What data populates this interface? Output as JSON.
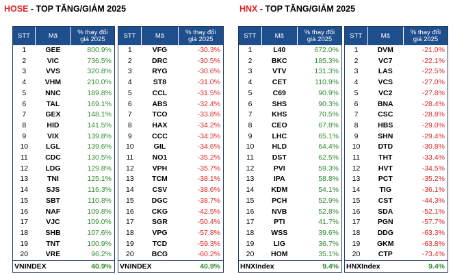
{
  "hose": {
    "exchange": "HOSE",
    "title_rest": " - TOP TĂNG/GIẢM 2025",
    "headers": {
      "stt": "STT",
      "code": "Mã",
      "change_line1": "% thay đổi",
      "change_line2": "giá 2025"
    },
    "index_name": "VNINDEX",
    "index_value": "40.9%",
    "gainers": [
      {
        "stt": "1",
        "code": "GEE",
        "change": "800.9%"
      },
      {
        "stt": "2",
        "code": "VIC",
        "change": "736.5%"
      },
      {
        "stt": "3",
        "code": "VVS",
        "change": "320.8%"
      },
      {
        "stt": "4",
        "code": "VHM",
        "change": "210.0%"
      },
      {
        "stt": "5",
        "code": "NNC",
        "change": "189.8%"
      },
      {
        "stt": "6",
        "code": "TAL",
        "change": "169.1%"
      },
      {
        "stt": "7",
        "code": "GEX",
        "change": "148.1%"
      },
      {
        "stt": "8",
        "code": "HID",
        "change": "141.5%"
      },
      {
        "stt": "9",
        "code": "VIX",
        "change": "139.8%"
      },
      {
        "stt": "10",
        "code": "LGL",
        "change": "139.6%"
      },
      {
        "stt": "11",
        "code": "CDC",
        "change": "130.5%"
      },
      {
        "stt": "12",
        "code": "LDG",
        "change": "129.8%"
      },
      {
        "stt": "13",
        "code": "TNI",
        "change": "125.1%"
      },
      {
        "stt": "14",
        "code": "SJS",
        "change": "116.3%"
      },
      {
        "stt": "15",
        "code": "SBT",
        "change": "110.8%"
      },
      {
        "stt": "16",
        "code": "NAF",
        "change": "109.8%"
      },
      {
        "stt": "17",
        "code": "VJC",
        "change": "109.0%"
      },
      {
        "stt": "18",
        "code": "SHB",
        "change": "107.6%"
      },
      {
        "stt": "19",
        "code": "TNT",
        "change": "100.9%"
      },
      {
        "stt": "20",
        "code": "VRE",
        "change": "96.2%"
      }
    ],
    "losers": [
      {
        "stt": "1",
        "code": "VFG",
        "change": "-30.3%"
      },
      {
        "stt": "2",
        "code": "DRC",
        "change": "-30.5%"
      },
      {
        "stt": "3",
        "code": "RYG",
        "change": "-30.6%"
      },
      {
        "stt": "4",
        "code": "ST8",
        "change": "-31.0%"
      },
      {
        "stt": "5",
        "code": "CCL",
        "change": "-31.5%"
      },
      {
        "stt": "6",
        "code": "ABS",
        "change": "-32.4%"
      },
      {
        "stt": "7",
        "code": "TCO",
        "change": "-33.8%"
      },
      {
        "stt": "8",
        "code": "HAX",
        "change": "-34.2%"
      },
      {
        "stt": "9",
        "code": "CCC",
        "change": "-34.3%"
      },
      {
        "stt": "10",
        "code": "GIL",
        "change": "-34.6%"
      },
      {
        "stt": "11",
        "code": "NO1",
        "change": "-35.2%"
      },
      {
        "stt": "12",
        "code": "VPH",
        "change": "-35.7%"
      },
      {
        "stt": "13",
        "code": "TCM",
        "change": "-38.1%"
      },
      {
        "stt": "14",
        "code": "CSV",
        "change": "-38.6%"
      },
      {
        "stt": "15",
        "code": "DGC",
        "change": "-38.7%"
      },
      {
        "stt": "16",
        "code": "CKG",
        "change": "-42.5%"
      },
      {
        "stt": "17",
        "code": "SGR",
        "change": "-50.4%"
      },
      {
        "stt": "18",
        "code": "VPG",
        "change": "-57.8%"
      },
      {
        "stt": "19",
        "code": "TCD",
        "change": "-59.3%"
      },
      {
        "stt": "20",
        "code": "BCG",
        "change": "-60.2%"
      }
    ]
  },
  "hnx": {
    "exchange": "HNX",
    "title_rest": " - TOP TĂNG/GIẢM 2025",
    "headers": {
      "stt": "STT",
      "code": "Mã",
      "change_line1": "% thay đổi",
      "change_line2": "giá 2025"
    },
    "index_name": "HNXIndex",
    "index_value": "9.4%",
    "gainers": [
      {
        "stt": "1",
        "code": "L40",
        "change": "672.0%"
      },
      {
        "stt": "2",
        "code": "BKC",
        "change": "185.3%"
      },
      {
        "stt": "3",
        "code": "VTV",
        "change": "131.3%"
      },
      {
        "stt": "4",
        "code": "CET",
        "change": "110.9%"
      },
      {
        "stt": "5",
        "code": "C69",
        "change": "90.9%"
      },
      {
        "stt": "6",
        "code": "SHS",
        "change": "90.3%"
      },
      {
        "stt": "7",
        "code": "KHS",
        "change": "70.5%"
      },
      {
        "stt": "8",
        "code": "CEO",
        "change": "67.8%"
      },
      {
        "stt": "9",
        "code": "LHC",
        "change": "65.1%"
      },
      {
        "stt": "10",
        "code": "HLD",
        "change": "64.4%"
      },
      {
        "stt": "11",
        "code": "DST",
        "change": "62.5%"
      },
      {
        "stt": "12",
        "code": "PVI",
        "change": "59.3%"
      },
      {
        "stt": "13",
        "code": "IPA",
        "change": "58.8%"
      },
      {
        "stt": "14",
        "code": "KDM",
        "change": "54.1%"
      },
      {
        "stt": "15",
        "code": "PCH",
        "change": "52.9%"
      },
      {
        "stt": "16",
        "code": "NVB",
        "change": "52.8%"
      },
      {
        "stt": "17",
        "code": "PTI",
        "change": "41.7%"
      },
      {
        "stt": "18",
        "code": "WSS",
        "change": "39.6%"
      },
      {
        "stt": "19",
        "code": "LIG",
        "change": "36.7%"
      },
      {
        "stt": "20",
        "code": "HOM",
        "change": "35.1%"
      }
    ],
    "losers": [
      {
        "stt": "1",
        "code": "DVM",
        "change": "-21.0%"
      },
      {
        "stt": "2",
        "code": "VC7",
        "change": "-22.1%"
      },
      {
        "stt": "3",
        "code": "LAS",
        "change": "-22.5%"
      },
      {
        "stt": "4",
        "code": "VCS",
        "change": "-27.0%"
      },
      {
        "stt": "5",
        "code": "VC2",
        "change": "-27.8%"
      },
      {
        "stt": "6",
        "code": "BNA",
        "change": "-28.4%"
      },
      {
        "stt": "7",
        "code": "CSC",
        "change": "-28.8%"
      },
      {
        "stt": "8",
        "code": "HBS",
        "change": "-29.0%"
      },
      {
        "stt": "9",
        "code": "SHN",
        "change": "-29.4%"
      },
      {
        "stt": "10",
        "code": "DTD",
        "change": "-30.8%"
      },
      {
        "stt": "11",
        "code": "THT",
        "change": "-33.4%"
      },
      {
        "stt": "12",
        "code": "HVT",
        "change": "-34.5%"
      },
      {
        "stt": "13",
        "code": "PCT",
        "change": "-35.2%"
      },
      {
        "stt": "14",
        "code": "TIG",
        "change": "-36.1%"
      },
      {
        "stt": "15",
        "code": "CST",
        "change": "-44.3%"
      },
      {
        "stt": "16",
        "code": "SDA",
        "change": "-52.1%"
      },
      {
        "stt": "17",
        "code": "PGN",
        "change": "-57.7%"
      },
      {
        "stt": "18",
        "code": "DDG",
        "change": "-63.3%"
      },
      {
        "stt": "19",
        "code": "GKM",
        "change": "-63.8%"
      },
      {
        "stt": "20",
        "code": "CTP",
        "change": "-73.4%"
      }
    ]
  },
  "colors": {
    "header_bg": "#1f4e8c",
    "positive": "#2e8b2e",
    "negative": "#e02424",
    "title_accent": "#e02424"
  }
}
